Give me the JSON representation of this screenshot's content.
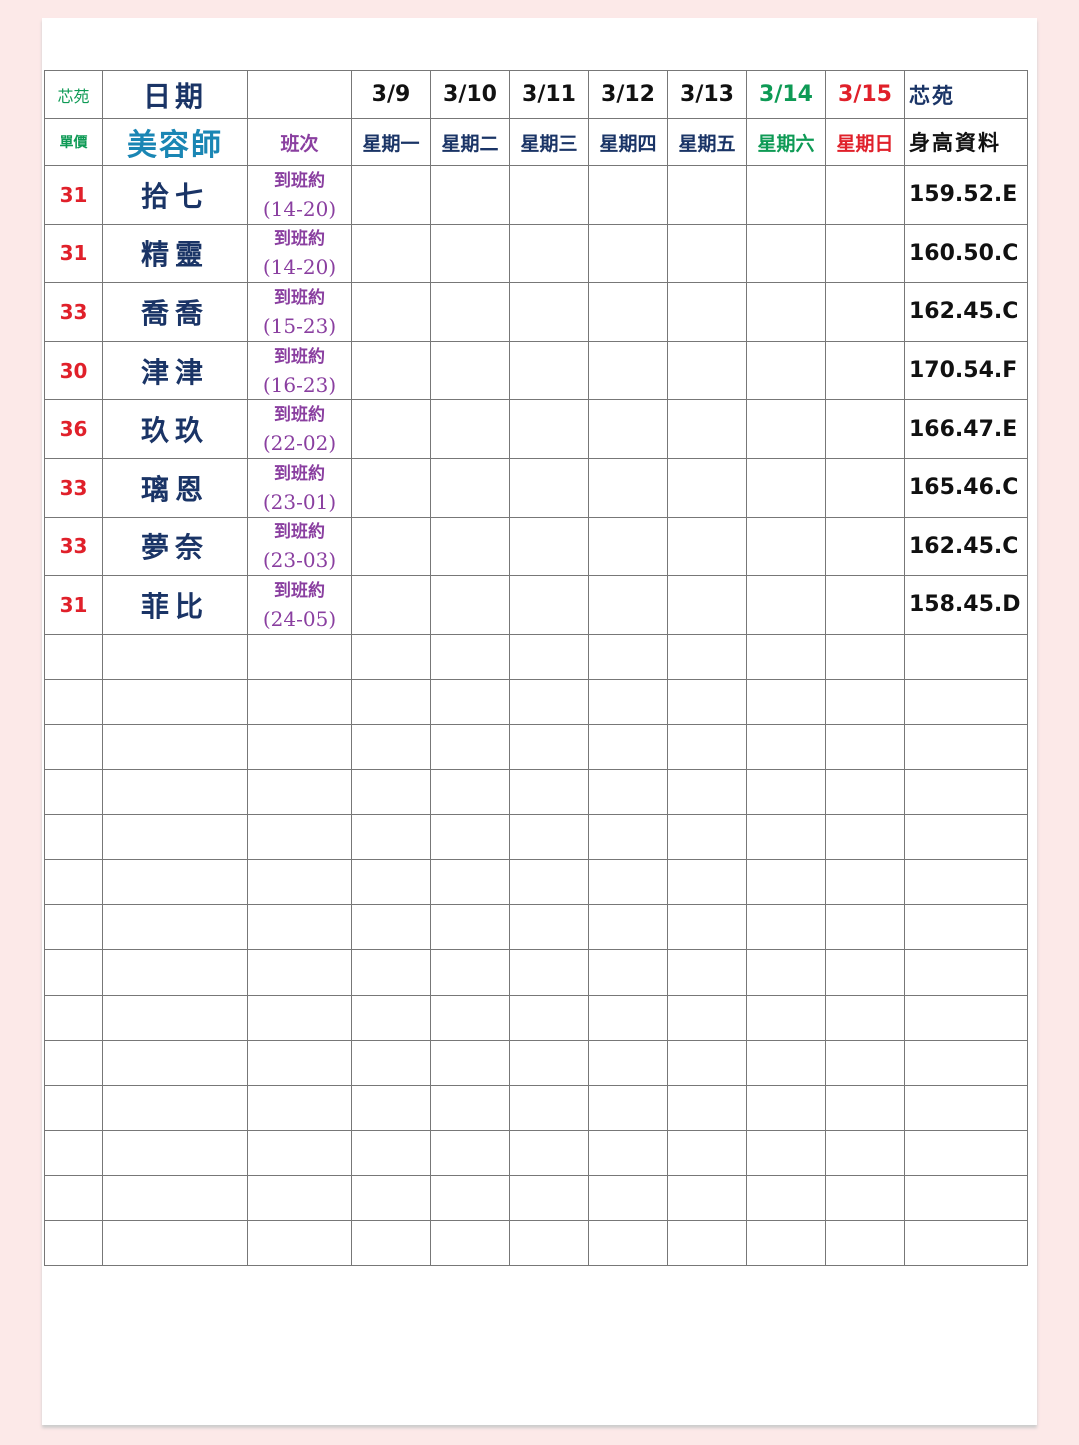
{
  "header": {
    "brand_small": "芯苑",
    "date_label": "日期",
    "unit_price_label": "單價",
    "beautician_label": "美容師",
    "shift_label": "班次",
    "brand_right": "芯苑",
    "height_label": "身高資料",
    "days": [
      {
        "date": "3/9",
        "weekday": "星期一",
        "color": "#1a3466"
      },
      {
        "date": "3/10",
        "weekday": "星期二",
        "color": "#1a3466"
      },
      {
        "date": "3/11",
        "weekday": "星期三",
        "color": "#1a3466"
      },
      {
        "date": "3/12",
        "weekday": "星期四",
        "color": "#1a3466"
      },
      {
        "date": "3/13",
        "weekday": "星期五",
        "color": "#1a3466"
      },
      {
        "date": "3/14",
        "weekday": "星期六",
        "color": "#0e9a55"
      },
      {
        "date": "3/15",
        "weekday": "星期日",
        "color": "#e0202a"
      }
    ]
  },
  "rows": [
    {
      "price": "31",
      "name": "拾七",
      "shift_note": "到班約",
      "shift_time": "(14-20)",
      "height": "159.52.E"
    },
    {
      "price": "31",
      "name": "精靈",
      "shift_note": "到班約",
      "shift_time": "(14-20)",
      "height": "160.50.C"
    },
    {
      "price": "33",
      "name": "喬喬",
      "shift_note": "到班約",
      "shift_time": "(15-23)",
      "height": "162.45.C"
    },
    {
      "price": "30",
      "name": "津津",
      "shift_note": "到班約",
      "shift_time": "(16-23)",
      "height": "170.54.F"
    },
    {
      "price": "36",
      "name": "玖玖",
      "shift_note": "到班約",
      "shift_time": "(22-02)",
      "height": "166.47.E"
    },
    {
      "price": "33",
      "name": "璃恩",
      "shift_note": "到班約",
      "shift_time": "(23-01)",
      "height": "165.46.C"
    },
    {
      "price": "33",
      "name": "夢奈",
      "shift_note": "到班約",
      "shift_time": "(23-03)",
      "height": "162.45.C"
    },
    {
      "price": "31",
      "name": "菲比",
      "shift_note": "到班約",
      "shift_time": "(24-05)",
      "height": "158.45.D"
    }
  ],
  "empty_rows": 14
}
